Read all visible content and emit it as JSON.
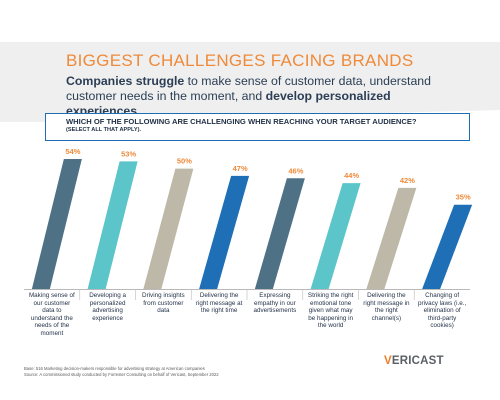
{
  "header": {
    "title": "BIGGEST CHALLENGES FACING BRANDS",
    "subtitle_bold_1": "Companies struggle",
    "subtitle_text_1": " to make sense of customer data, understand customer needs in the moment, and ",
    "subtitle_bold_2": "develop personalized experiences.",
    "question": "WHICH OF THE FOLLOWING ARE CHALLENGING WHEN REACHING YOUR TARGET AUDIENCE?",
    "question_note": "(SELECT ALL THAT APPLY)."
  },
  "chart_data": {
    "type": "bar",
    "title": "",
    "xlabel": "",
    "ylabel": "",
    "ylim": [
      0,
      60
    ],
    "categories": [
      "Making sense of our customer data to understand the needs of the moment",
      "Developing a personalized advertising experience",
      "Driving insights from customer data",
      "Delivering the right message at the right time",
      "Expressing empathy in our advertisements",
      "Striking the right emotional tone given what may be happening in the world",
      "Delivering the right message in the right channel(s)",
      "Changing of privacy laws (i.e., elimination of third-party cookies)"
    ],
    "values": [
      54,
      53,
      50,
      47,
      46,
      44,
      42,
      35
    ],
    "value_labels": [
      "54%",
      "53%",
      "50%",
      "47%",
      "46%",
      "44%",
      "42%",
      "35%"
    ],
    "label_lines": [
      [
        "Making sense of",
        "our customer",
        "data to",
        "understand the",
        "needs of the",
        "moment"
      ],
      [
        "Developing a",
        "personalized",
        "advertising",
        "experience"
      ],
      [
        "Driving insights",
        "from customer",
        "data"
      ],
      [
        "Delivering the",
        "right message at",
        "the right time"
      ],
      [
        "Expressing",
        "empathy in our",
        "advertisements"
      ],
      [
        "Striking the right",
        "emotional tone",
        "given what may",
        "be happening in",
        "the world"
      ],
      [
        "Delivering the",
        "right message in",
        "the right",
        "channel(s)"
      ],
      [
        "Changing of",
        "privacy laws (i.e.,",
        "elimination of",
        "third-party",
        "cookies)"
      ]
    ],
    "bar_colors": [
      "#4f7186",
      "#5bc5c9",
      "#bdb8a7",
      "#1e6fb5",
      "#4f7186",
      "#5bc5c9",
      "#bdb8a7",
      "#1e6fb5"
    ],
    "value_label_color": "#ee8a3a",
    "grid": false,
    "legend": "none"
  },
  "footnotes": {
    "base": "Base: 516 Marketing decision-makers responsible for advertising strategy at American companies",
    "source": "Source: A commissioned study conducted by Forrester Consulting on behalf of Vericast, September 2022"
  },
  "logo": {
    "text_v": "V",
    "text_rest": "ERICAST",
    "accent_color": "#f07a24"
  }
}
